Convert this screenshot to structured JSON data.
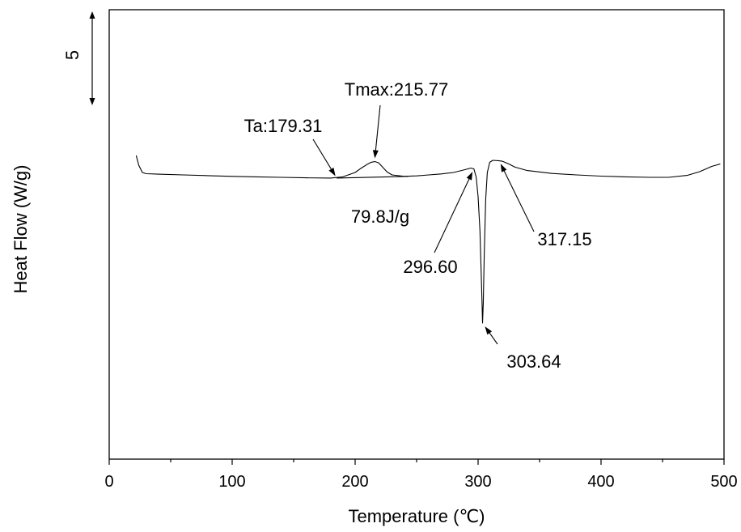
{
  "chart_data": {
    "type": "line",
    "title": "",
    "xlabel": "Temperature (℃)",
    "ylabel": "Heat Flow (W/g)",
    "xlim": [
      0,
      500
    ],
    "ylim": [
      -16,
      2.5
    ],
    "xticks": [
      0,
      100,
      200,
      300,
      400,
      500
    ],
    "grid": false,
    "scale_bar": {
      "label": "5",
      "length": 5
    },
    "series": [
      {
        "name": "",
        "x": [
          22,
          24,
          27,
          30,
          40,
          60,
          80,
          100,
          120,
          140,
          160,
          180,
          190,
          200,
          205,
          210,
          213,
          216,
          219,
          222,
          226,
          230,
          240,
          250,
          260,
          270,
          280,
          288,
          294,
          296.6,
          298.5,
          300,
          301.5,
          302.5,
          303.2,
          303.64,
          304.2,
          305,
          306.2,
          307.5,
          309.5,
          312,
          317.15,
          320,
          325,
          330,
          340,
          360,
          380,
          400,
          420,
          440,
          455,
          470,
          480,
          490,
          497
        ],
        "y": [
          -3.5,
          -3.9,
          -4.2,
          -4.25,
          -4.27,
          -4.3,
          -4.33,
          -4.36,
          -4.38,
          -4.4,
          -4.42,
          -4.43,
          -4.38,
          -4.2,
          -4.02,
          -3.86,
          -3.78,
          -3.75,
          -3.8,
          -3.96,
          -4.18,
          -4.3,
          -4.36,
          -4.34,
          -4.3,
          -4.26,
          -4.2,
          -4.1,
          -4.02,
          -4.05,
          -4.4,
          -5.2,
          -6.6,
          -8.3,
          -9.6,
          -10.4,
          -9.6,
          -7.6,
          -5.3,
          -4.2,
          -3.78,
          -3.7,
          -3.72,
          -3.74,
          -3.85,
          -3.98,
          -4.12,
          -4.24,
          -4.3,
          -4.35,
          -4.38,
          -4.4,
          -4.4,
          -4.32,
          -4.17,
          -3.95,
          -3.85
        ]
      },
      {
        "name": "",
        "x": [
          185,
          243
        ],
        "y": [
          -4.43,
          -4.36
        ]
      }
    ],
    "annotations": [
      {
        "text": "Tmax:215.77",
        "x": 215.77,
        "y": -3.75
      },
      {
        "text": "Ta:179.31",
        "x": 185,
        "y": -4.43
      },
      {
        "text": "79.8J/g",
        "x": 232,
        "y": -4.45
      },
      {
        "text": "296.60",
        "x": 296.6,
        "y": -4.05
      },
      {
        "text": "317.15",
        "x": 317.15,
        "y": -3.72
      },
      {
        "text": "303.64",
        "x": 303.64,
        "y": -10.4
      }
    ]
  }
}
